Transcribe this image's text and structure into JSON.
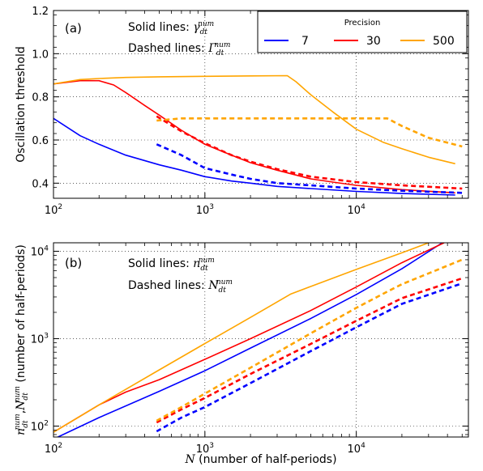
{
  "chart_data": [
    {
      "type": "line",
      "panel_label": "(a)",
      "ylabel": "Oscillation threshold",
      "xscale": "log",
      "xlim": [
        100,
        55000
      ],
      "ylim": [
        0.33,
        1.2
      ],
      "yticks": [
        0.4,
        0.6,
        0.8,
        1.0,
        1.2
      ],
      "ytick_labels": [
        "0.4",
        "0.6",
        "0.8",
        "1.0",
        "1.2"
      ],
      "xticks": [
        100,
        1000,
        10000
      ],
      "xtick_labels": [
        {
          "base": "10",
          "exp": "2"
        },
        {
          "base": "10",
          "exp": "3"
        },
        {
          "base": "10",
          "exp": "4"
        }
      ],
      "grid": true,
      "annotations": [
        {
          "prefix": "Solid lines: ",
          "sym": "γ",
          "sub": "dt",
          "sup": "num"
        },
        {
          "prefix": "Dashed lines: ",
          "sym": "Γ",
          "sub": "dt",
          "sup": "num"
        }
      ],
      "legend": {
        "title": "Precision",
        "placement": "top-right"
      },
      "series": [
        {
          "name": "7",
          "color": "#0000ff",
          "style": "solid",
          "x": [
            100,
            150,
            200,
            300,
            500,
            700,
            1000,
            1500,
            2000,
            3000,
            5000,
            10000,
            20000,
            45000
          ],
          "y": [
            0.7,
            0.62,
            0.58,
            0.53,
            0.485,
            0.46,
            0.43,
            0.41,
            0.4,
            0.385,
            0.375,
            0.362,
            0.352,
            0.345
          ]
        },
        {
          "name": "30",
          "color": "#ff0000",
          "style": "solid",
          "x": [
            100,
            150,
            200,
            250,
            300,
            400,
            500,
            700,
            1000,
            1500,
            2000,
            3000,
            5000,
            7000,
            10000,
            20000,
            45000
          ],
          "y": [
            0.86,
            0.875,
            0.875,
            0.855,
            0.82,
            0.76,
            0.715,
            0.645,
            0.58,
            0.53,
            0.495,
            0.46,
            0.42,
            0.405,
            0.39,
            0.37,
            0.355
          ]
        },
        {
          "name": "500",
          "color": "#ffa500",
          "style": "solid",
          "x": [
            100,
            150,
            200,
            300,
            500,
            1000,
            2000,
            3500,
            4000,
            5000,
            7000,
            10000,
            15000,
            20000,
            30000,
            45000
          ],
          "y": [
            0.86,
            0.88,
            0.885,
            0.89,
            0.893,
            0.895,
            0.897,
            0.898,
            0.87,
            0.81,
            0.73,
            0.65,
            0.59,
            0.56,
            0.52,
            0.49
          ]
        },
        {
          "name": "7",
          "color": "#0000ff",
          "style": "dashed",
          "x": [
            480,
            700,
            1000,
            1500,
            2000,
            3000,
            5000,
            10000,
            20000,
            50000
          ],
          "y": [
            0.58,
            0.53,
            0.47,
            0.44,
            0.42,
            0.4,
            0.39,
            0.375,
            0.365,
            0.355
          ]
        },
        {
          "name": "30",
          "color": "#ff0000",
          "style": "dashed",
          "x": [
            480,
            700,
            1000,
            1500,
            2000,
            3000,
            5000,
            10000,
            20000,
            50000
          ],
          "y": [
            0.71,
            0.64,
            0.585,
            0.53,
            0.5,
            0.465,
            0.43,
            0.405,
            0.39,
            0.375
          ]
        },
        {
          "name": "500",
          "color": "#ffa500",
          "style": "dashed",
          "x": [
            480,
            700,
            1000,
            2000,
            5000,
            10000,
            16000,
            20000,
            30000,
            50000
          ],
          "y": [
            0.69,
            0.7,
            0.7,
            0.7,
            0.7,
            0.7,
            0.7,
            0.665,
            0.61,
            0.57
          ]
        }
      ]
    },
    {
      "type": "line",
      "panel_label": "(b)",
      "ylabel": {
        "sym1": "n",
        "sym2": "N",
        "sub": "dt",
        "sup": "num",
        "text": " (number of half-periods)"
      },
      "xlabel": {
        "sym": "N",
        "text": " (number of half-periods)"
      },
      "xscale": "log",
      "yscale": "log",
      "xlim": [
        100,
        55000
      ],
      "ylim": [
        75,
        12500
      ],
      "yticks": [
        100,
        1000,
        10000
      ],
      "ytick_labels": [
        {
          "base": "10",
          "exp": "2"
        },
        {
          "base": "10",
          "exp": "3"
        },
        {
          "base": "10",
          "exp": "4"
        }
      ],
      "xticks": [
        100,
        1000,
        10000
      ],
      "xtick_labels": [
        {
          "base": "10",
          "exp": "2"
        },
        {
          "base": "10",
          "exp": "3"
        },
        {
          "base": "10",
          "exp": "4"
        }
      ],
      "grid": true,
      "annotations": [
        {
          "prefix": "Solid lines: ",
          "sym": "n",
          "sub": "dt",
          "sup": "num"
        },
        {
          "prefix": "Dashed lines: ",
          "sym": "N",
          "sub": "dt",
          "sup": "num"
        }
      ],
      "series": [
        {
          "name": "7",
          "color": "#0000ff",
          "style": "solid",
          "x": [
            100,
            200,
            500,
            1000,
            2000,
            5000,
            10000,
            20000,
            37000
          ],
          "y": [
            71,
            125,
            250,
            430,
            780,
            1700,
            3200,
            6300,
            12500
          ]
        },
        {
          "name": "30",
          "color": "#ff0000",
          "style": "solid",
          "x": [
            100,
            200,
            300,
            500,
            1000,
            2000,
            5000,
            10000,
            20000,
            38000
          ],
          "y": [
            85,
            175,
            245,
            340,
            580,
            1000,
            2100,
            3900,
            7400,
            12500
          ]
        },
        {
          "name": "500",
          "color": "#ffa500",
          "style": "solid",
          "x": [
            100,
            200,
            500,
            1000,
            2000,
            3700,
            5000,
            10000,
            20000,
            30000
          ],
          "y": [
            85,
            175,
            440,
            880,
            1750,
            3250,
            3950,
            6200,
            9600,
            12500
          ]
        },
        {
          "name": "7",
          "color": "#0000ff",
          "style": "dashed",
          "x": [
            480,
            700,
            1000,
            2000,
            5000,
            10000,
            20000,
            50000
          ],
          "y": [
            87,
            125,
            165,
            310,
            720,
            1350,
            2500,
            4300
          ]
        },
        {
          "name": "30",
          "color": "#ff0000",
          "style": "dashed",
          "x": [
            480,
            700,
            1000,
            2000,
            5000,
            10000,
            20000,
            50000
          ],
          "y": [
            110,
            155,
            210,
            395,
            870,
            1600,
            2900,
            4900
          ]
        },
        {
          "name": "500",
          "color": "#ffa500",
          "style": "dashed",
          "x": [
            480,
            700,
            1000,
            2000,
            5000,
            10000,
            16000,
            20000,
            50000
          ],
          "y": [
            115,
            165,
            235,
            465,
            1150,
            2250,
            3450,
            4200,
            8000
          ]
        }
      ]
    }
  ]
}
